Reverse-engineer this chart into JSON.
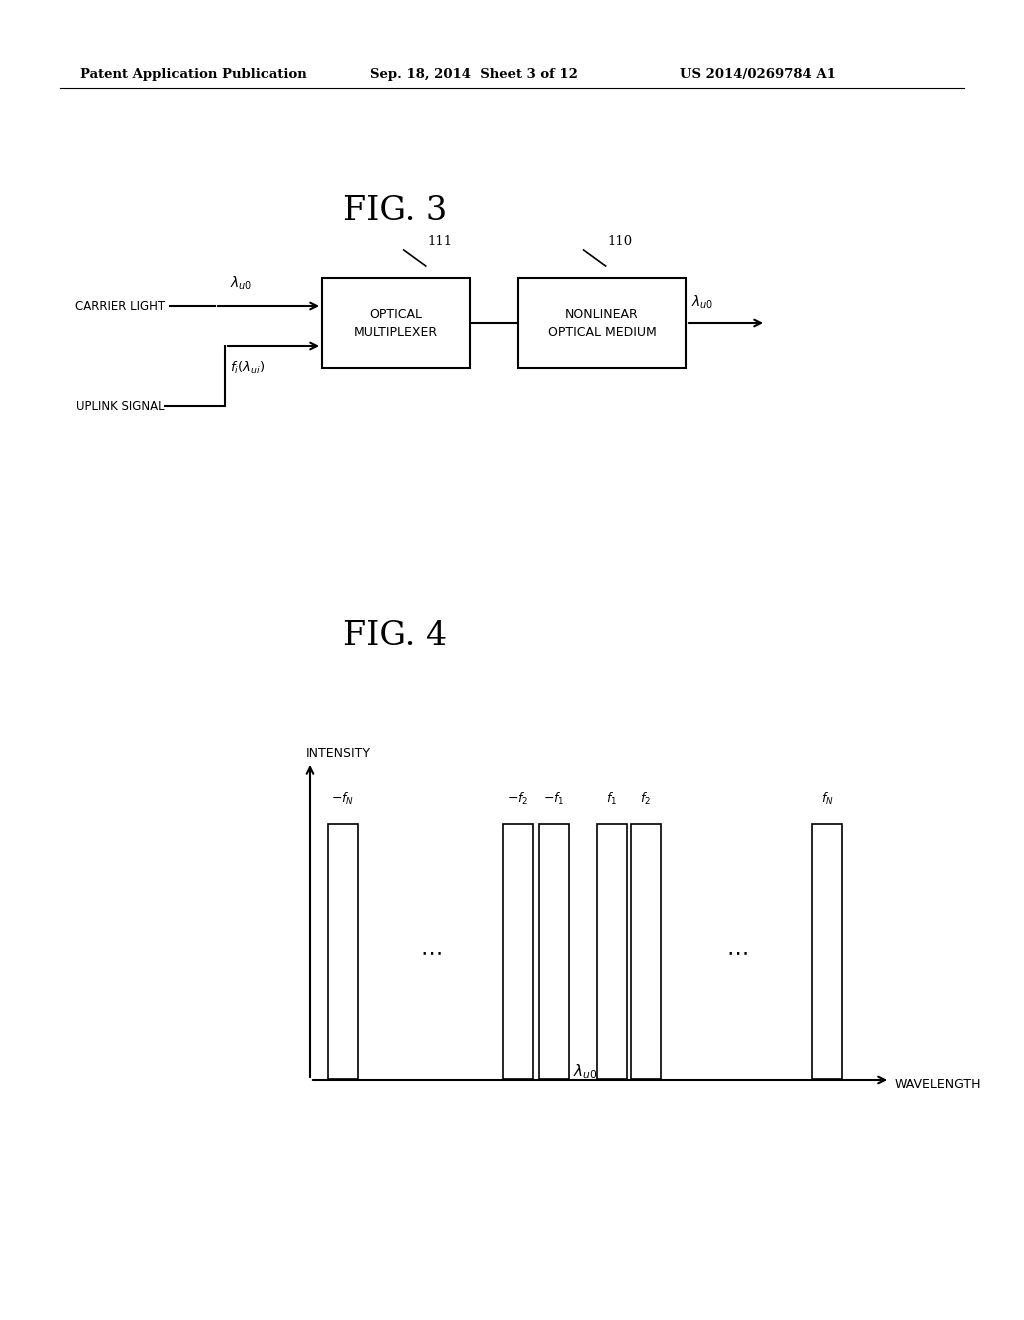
{
  "background_color": "#ffffff",
  "header_left": "Patent Application Publication",
  "header_center": "Sep. 18, 2014  Sheet 3 of 12",
  "header_right": "US 2014/0269784 A1",
  "fig3_title": "FIG. 3",
  "fig4_title": "FIG. 4",
  "fig4_ylabel": "INTENSITY",
  "fig4_xlabel": "WAVELENGTH"
}
